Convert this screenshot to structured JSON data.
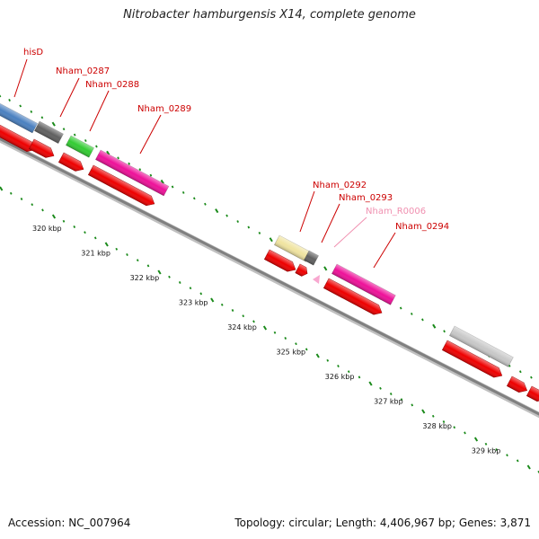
{
  "title": "Nitrobacter hamburgensis X14, complete genome",
  "footer": {
    "accession": "Accession: NC_007964",
    "summary": "Topology: circular; Length: 4,406,967 bp; Genes: 3,871"
  },
  "colors": {
    "cds": "#ee0000",
    "backbone": "#808080",
    "tick": "#1a8a1a",
    "label": "#cc0000",
    "rna_label": "#f090b0"
  },
  "scale_labels": [
    "320 kbp",
    "321 kbp",
    "322 kbp",
    "323 kbp",
    "324 kbp",
    "325 kbp",
    "326 kbp",
    "327 kbp",
    "328 kbp",
    "329 kbp"
  ],
  "gene_labels": [
    {
      "text": "hisD",
      "color": "#cc0000"
    },
    {
      "text": "Nham_0287",
      "color": "#cc0000"
    },
    {
      "text": "Nham_0288",
      "color": "#cc0000"
    },
    {
      "text": "Nham_0289",
      "color": "#cc0000"
    },
    {
      "text": "Nham_0292",
      "color": "#cc0000"
    },
    {
      "text": "Nham_0293",
      "color": "#cc0000"
    },
    {
      "text": "Nham_R0006",
      "color": "#f090b0"
    },
    {
      "text": "Nham_0294",
      "color": "#cc0000"
    }
  ],
  "feature_colors": {
    "hisD": "#4a80c0",
    "Nham_0287": "#606060",
    "Nham_0288": "#33cc33",
    "Nham_0289": "#ee1199",
    "Nham_0292": "#f0e4a0",
    "Nham_0293": "#606060",
    "Nham_R0006": "#f8a8d0",
    "Nham_0294": "#ee1199",
    "unlabeled": "#c8c8c8"
  }
}
